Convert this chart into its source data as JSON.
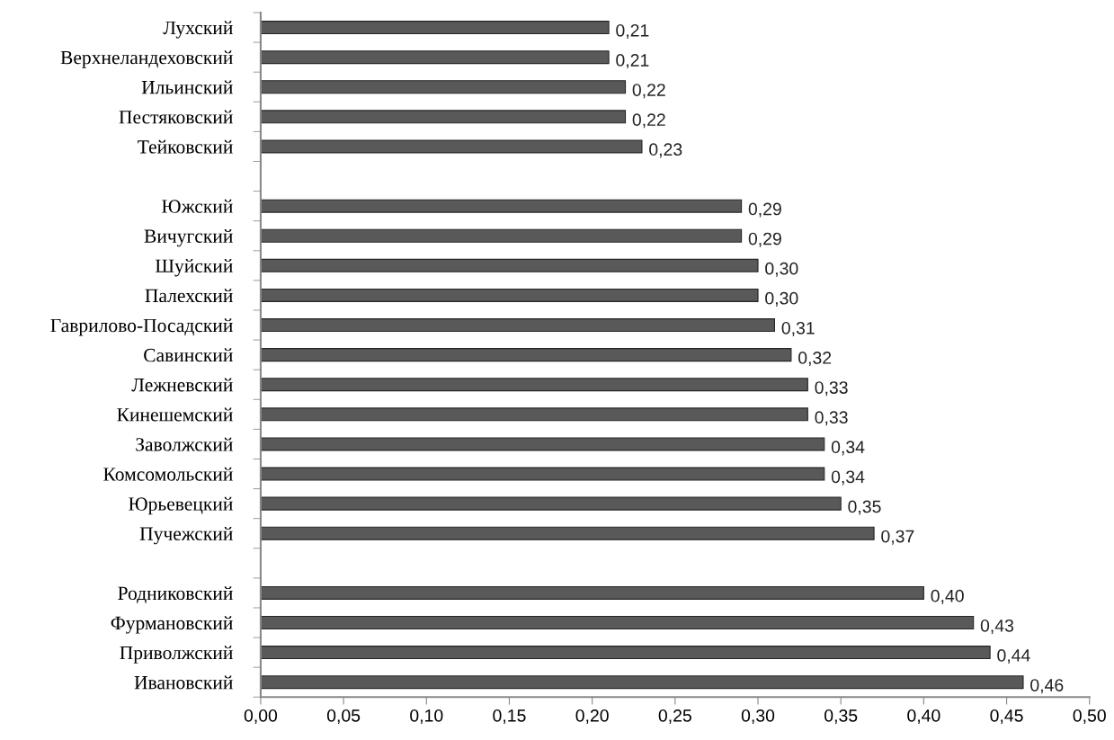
{
  "chart_data": {
    "type": "bar",
    "orientation": "horizontal",
    "categories": [
      "Лухский",
      "Верхнеландеховский",
      "Ильинский",
      "Пестяковский",
      "Тейковский",
      null,
      "Южский",
      "Вичугский",
      "Шуйский",
      "Палехский",
      "Гаврилово-Посадский",
      "Савинский",
      "Лежневский",
      "Кинешемский",
      "Заволжский",
      "Комсомольский",
      "Юрьевецкий",
      "Пучежский",
      null,
      "Родниковский",
      "Фурмановский",
      "Приволжский",
      "Ивановский"
    ],
    "values": [
      0.21,
      0.21,
      0.22,
      0.22,
      0.23,
      null,
      0.29,
      0.29,
      0.3,
      0.3,
      0.31,
      0.32,
      0.33,
      0.33,
      0.34,
      0.34,
      0.35,
      0.37,
      null,
      0.4,
      0.43,
      0.44,
      0.46
    ],
    "value_labels": [
      "0,21",
      "0,21",
      "0,22",
      "0,22",
      "0,23",
      null,
      "0,29",
      "0,29",
      "0,30",
      "0,30",
      "0,31",
      "0,32",
      "0,33",
      "0,33",
      "0,34",
      "0,34",
      "0,35",
      "0,37",
      null,
      "0,40",
      "0,43",
      "0,44",
      "0,46"
    ],
    "color": "#595959",
    "xlim": [
      0,
      0.5
    ],
    "xticks": [
      {
        "value": 0,
        "label": "0,00"
      },
      {
        "value": 0.05,
        "label": "0,05"
      },
      {
        "value": 0.1,
        "label": "0,10"
      },
      {
        "value": 0.15,
        "label": "0,15"
      },
      {
        "value": 0.2,
        "label": "0,20"
      },
      {
        "value": 0.25,
        "label": "0,25"
      },
      {
        "value": 0.3,
        "label": "0,30"
      },
      {
        "value": 0.35,
        "label": "0,35"
      },
      {
        "value": 0.4,
        "label": "0,40"
      },
      {
        "value": 0.45,
        "label": "0,45"
      },
      {
        "value": 0.5,
        "label": "0,50"
      }
    ],
    "grid": false,
    "legend": false
  }
}
